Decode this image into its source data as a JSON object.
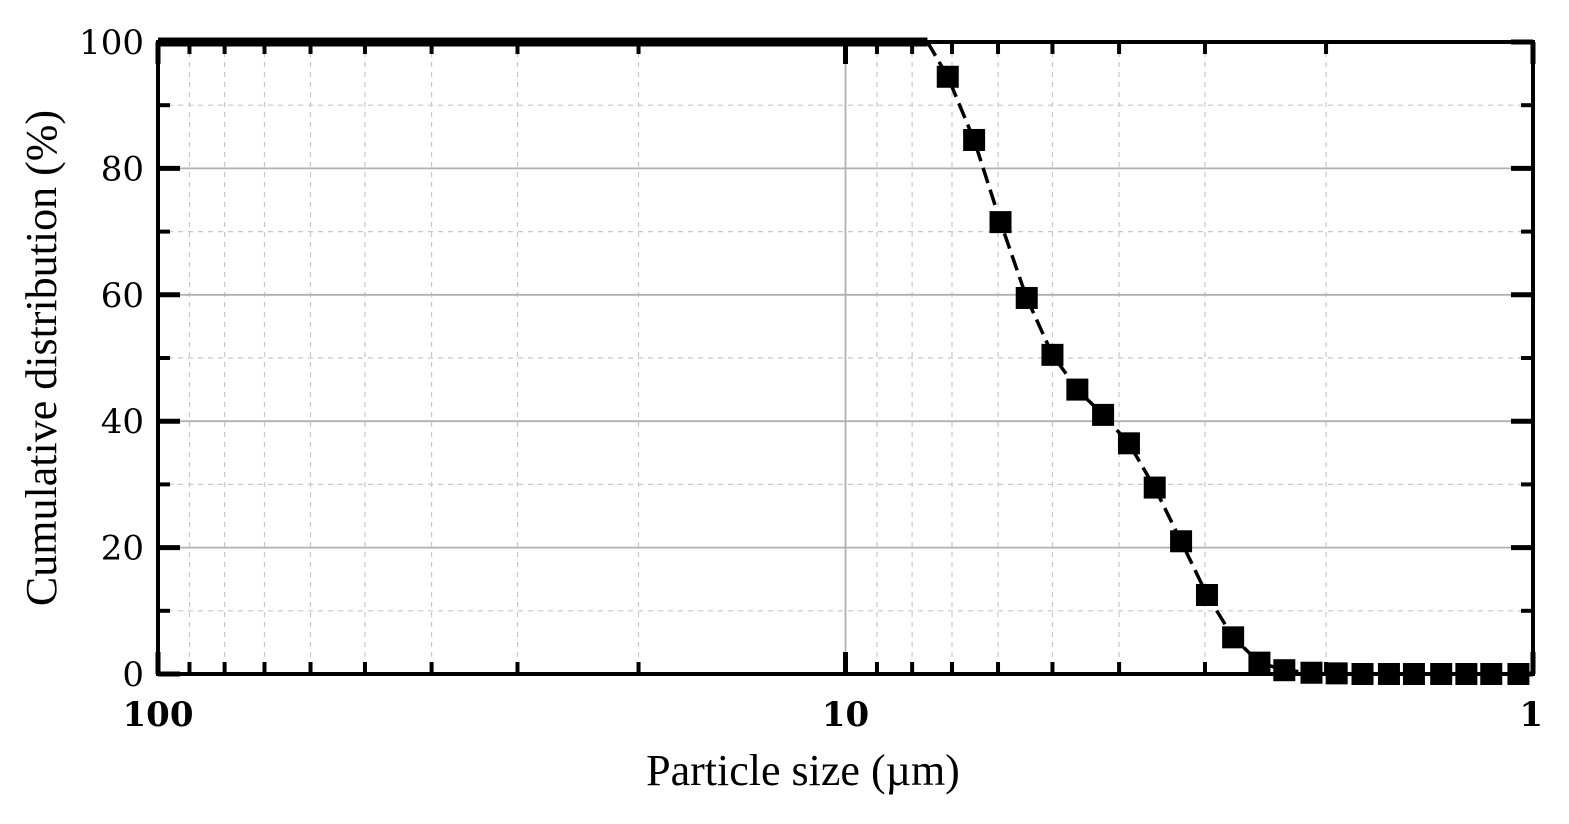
{
  "chart_data": {
    "type": "scatter",
    "title": "",
    "xlabel": "Particle size (µm)",
    "ylabel": "Cumulative distribution (%)",
    "x_scale": "log",
    "x_reversed": true,
    "xlim": [
      100,
      1
    ],
    "ylim": [
      0,
      100
    ],
    "x_ticks": [
      100,
      10,
      1
    ],
    "x_tick_labels": [
      "100",
      "10",
      "1"
    ],
    "y_ticks": [
      0,
      20,
      40,
      60,
      80,
      100
    ],
    "y_tick_labels": [
      "0",
      "20",
      "40",
      "60",
      "80",
      "100"
    ],
    "grid": true,
    "series": [
      {
        "marker": "square",
        "line_style": "dashed",
        "color": "#000000",
        "x": [
          7.1,
          6.5,
          5.95,
          5.45,
          5.0,
          4.6,
          4.22,
          3.87,
          3.55,
          3.25,
          2.98,
          2.73,
          2.5,
          2.3,
          2.1,
          1.93,
          1.77,
          1.62,
          1.49,
          1.36,
          1.25,
          1.15,
          1.05
        ],
        "y": [
          94.5,
          84.5,
          71.5,
          59.5,
          50.5,
          45.0,
          41.0,
          36.5,
          29.5,
          21.0,
          12.5,
          5.8,
          1.8,
          0.6,
          0.2,
          0.1,
          0,
          0,
          0,
          0,
          0,
          0,
          0
        ]
      }
    ],
    "flat_segment": {
      "x": [
        100,
        7.6
      ],
      "y": 100
    }
  }
}
